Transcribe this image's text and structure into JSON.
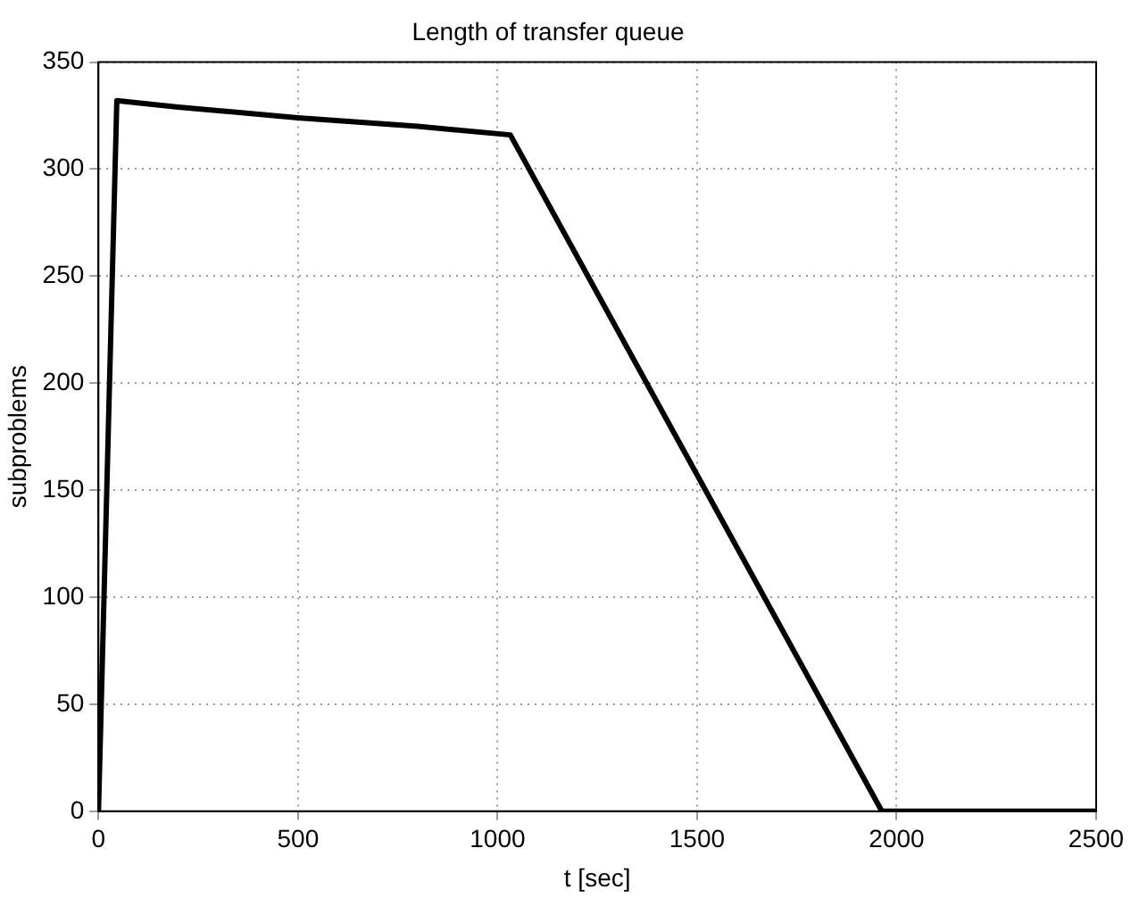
{
  "chart_data": {
    "type": "line",
    "title": "Length of transfer queue",
    "xlabel": "t [sec]",
    "ylabel": "subproblems",
    "x": [
      0,
      46,
      200,
      500,
      800,
      1032,
      1963,
      2500
    ],
    "series": [
      {
        "color": "#000000",
        "values": [
          0,
          332,
          329,
          324,
          320,
          316,
          0,
          0
        ]
      }
    ],
    "xlim": [
      0,
      2500
    ],
    "xticks": [
      0,
      500,
      1000,
      1500,
      2000,
      2500
    ],
    "ylim": [
      0,
      350
    ],
    "yticks": [
      0,
      50,
      100,
      150,
      200,
      250,
      300,
      350
    ],
    "grid": true,
    "legend": false,
    "marker": "none",
    "line_style": "solid"
  }
}
